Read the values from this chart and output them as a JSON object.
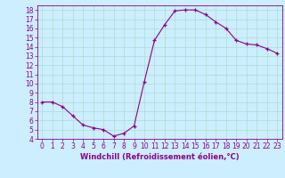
{
  "x": [
    0,
    1,
    2,
    3,
    4,
    5,
    6,
    7,
    8,
    9,
    10,
    11,
    12,
    13,
    14,
    15,
    16,
    17,
    18,
    19,
    20,
    21,
    22,
    23
  ],
  "y": [
    8,
    8,
    7.5,
    6.5,
    5.5,
    5.2,
    5.0,
    4.3,
    4.6,
    5.4,
    10.2,
    14.7,
    16.4,
    17.9,
    18.0,
    18.0,
    17.5,
    16.7,
    16.0,
    14.7,
    14.3,
    14.2,
    13.8,
    13.3
  ],
  "xlim": [
    -0.5,
    23.5
  ],
  "ylim": [
    4,
    18.5
  ],
  "xticks": [
    0,
    1,
    2,
    3,
    4,
    5,
    6,
    7,
    8,
    9,
    10,
    11,
    12,
    13,
    14,
    15,
    16,
    17,
    18,
    19,
    20,
    21,
    22,
    23
  ],
  "yticks": [
    4,
    5,
    6,
    7,
    8,
    9,
    10,
    11,
    12,
    13,
    14,
    15,
    16,
    17,
    18
  ],
  "xlabel": "Windchill (Refroidissement éolien,°C)",
  "line_color": "#8b008b",
  "marker": "+",
  "bg_color": "#cceeff",
  "grid_color": "#aaddcc",
  "label_fontsize": 6,
  "tick_fontsize": 5.5
}
